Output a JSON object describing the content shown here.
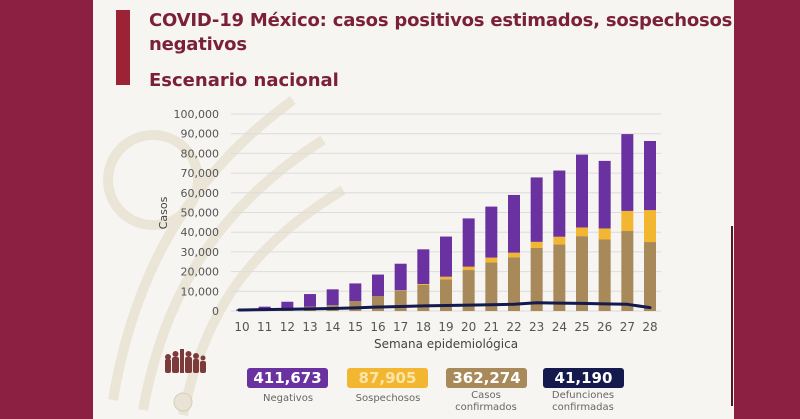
{
  "slide": {
    "title_line1": "COVID-19 México: casos positivos estimados, sospechosos y",
    "title_line2": "negativos",
    "subtitle": "Escenario nacional"
  },
  "colors": {
    "border": "#8b2042",
    "accent": "#9b2335",
    "title": "#7a2038",
    "negativos": "#6a31a0",
    "sospechosos": "#f2b630",
    "confirmados": "#a88a5a",
    "defunciones": "#141a4d"
  },
  "chart_data": {
    "type": "bar",
    "stacked": true,
    "title": "Escenario nacional",
    "xlabel": "Semana epidemiológica",
    "ylabel": "Casos",
    "ylim": [
      0,
      100000
    ],
    "yticks": [
      0,
      10000,
      20000,
      30000,
      40000,
      50000,
      60000,
      70000,
      80000,
      90000,
      100000
    ],
    "ytick_labels": [
      "0",
      "10,000",
      "20,000",
      "30,000",
      "40,000",
      "50,000",
      "60,000",
      "70,000",
      "80,000",
      "90,000",
      "100,000"
    ],
    "grid": true,
    "categories": [
      "10",
      "11",
      "12",
      "13",
      "14",
      "15",
      "16",
      "17",
      "18",
      "19",
      "20",
      "21",
      "22",
      "23",
      "24",
      "25",
      "26",
      "27",
      "28"
    ],
    "series": [
      {
        "name": "Casos confirmados",
        "kind": "bar",
        "values": [
          300,
          600,
          1200,
          2200,
          3000,
          5000,
          7600,
          10300,
          13200,
          16100,
          20800,
          24700,
          27300,
          32100,
          33800,
          38000,
          36300,
          40600,
          35000
        ]
      },
      {
        "name": "Sospechosos",
        "kind": "bar",
        "values": [
          0,
          0,
          0,
          0,
          0,
          0,
          0,
          200,
          500,
          1300,
          1700,
          2400,
          2300,
          3000,
          3900,
          4400,
          5600,
          10200,
          16200
        ]
      },
      {
        "name": "Negativos",
        "kind": "bar",
        "values": [
          400,
          1600,
          3500,
          6400,
          8000,
          9000,
          10900,
          13500,
          17600,
          20400,
          24500,
          25900,
          29300,
          32700,
          33600,
          37000,
          34300,
          39000,
          35100
        ]
      },
      {
        "name": "Defunciones confirmadas",
        "kind": "line",
        "values": [
          500,
          700,
          900,
          1100,
          1300,
          1600,
          2000,
          2300,
          2600,
          2800,
          3000,
          3200,
          3400,
          4200,
          4000,
          3900,
          3600,
          3400,
          1700
        ]
      }
    ],
    "totals": [
      {
        "label": "Negativos",
        "value": "411,673",
        "color_key": "negativos"
      },
      {
        "label": "Sospechosos",
        "value": "87,905",
        "color_key": "sospechosos"
      },
      {
        "label": "Casos confirmados",
        "value": "362,274",
        "color_key": "confirmados"
      },
      {
        "label": "Defunciones confirmadas",
        "value": "41,190",
        "color_key": "defunciones"
      }
    ]
  },
  "legend": {
    "negativos": {
      "value": "411,673",
      "label": "Negativos"
    },
    "sospechosos": {
      "value": "87,905",
      "label": "Sospechosos"
    },
    "confirmados": {
      "value": "362,274",
      "label_l1": "Casos",
      "label_l2": "confirmados"
    },
    "defunciones": {
      "value": "41,190",
      "label_l1": "Defunciones",
      "label_l2": "confirmadas"
    }
  },
  "icons": {
    "logo": "people-group-logo",
    "seal": "national-seal-icon"
  }
}
